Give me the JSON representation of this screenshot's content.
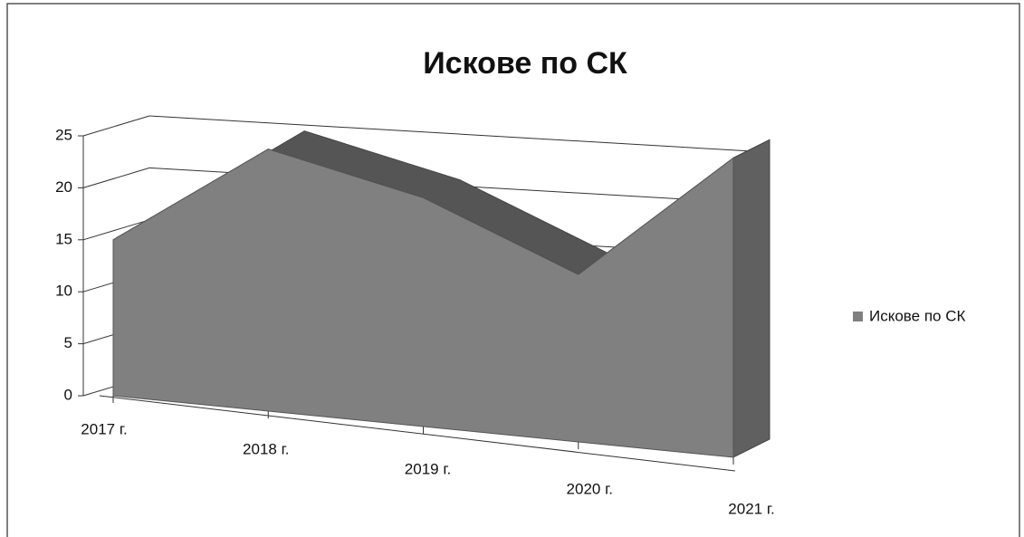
{
  "chart_data": {
    "type": "area",
    "title": "Искове по СК",
    "categories": [
      "2017 г.",
      "2018 г.",
      "2019 г.",
      "2020 г.",
      "2021 г."
    ],
    "series": [
      {
        "name": "Искове по СК",
        "color": "#808080",
        "values": [
          15,
          24,
          20,
          14,
          24
        ]
      }
    ],
    "ylim": [
      0,
      25
    ],
    "yticks": [
      0,
      5,
      10,
      15,
      20,
      25
    ],
    "grid": true,
    "legend": "right"
  }
}
